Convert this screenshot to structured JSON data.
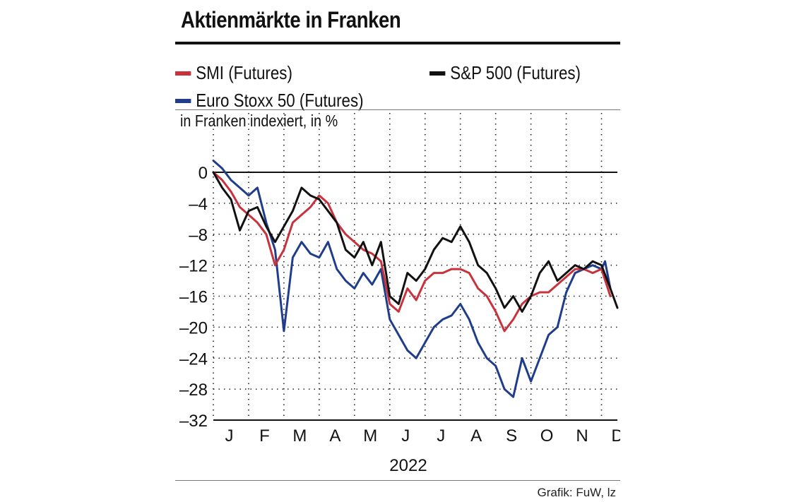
{
  "colors": {
    "smi": "#c8323c",
    "sp500": "#111111",
    "eurostoxx": "#1f3d8a"
  },
  "chart_data": {
    "type": "line",
    "title": "Aktienmärkte in Franken",
    "unit_label": "in Franken indexiert, in %",
    "year_label": "2022",
    "source": "Grafik: FuW, lz",
    "grid": true,
    "ylim": [
      -32,
      0
    ],
    "y_ticks": [
      0,
      -4,
      -8,
      -12,
      -16,
      -20,
      -24,
      -28,
      -32
    ],
    "y_tick_labels": [
      "0",
      "–4",
      "–8",
      "–12",
      "–16",
      "–20",
      "–24",
      "–28",
      "–32"
    ],
    "months": [
      "J",
      "F",
      "M",
      "A",
      "M",
      "J",
      "J",
      "A",
      "S",
      "O",
      "N",
      "D"
    ],
    "x_unit": "month index (0 = start of January 2022)",
    "xlim": [
      0,
      11.45
    ],
    "legend": {
      "placement": "top",
      "entries": [
        "SMI (Futures)",
        "S&P 500 (Futures)",
        "Euro Stoxx 50 (Futures)"
      ]
    },
    "series": [
      {
        "name": "SMI (Futures)",
        "color": "#c8323c",
        "x": [
          0,
          0.25,
          0.5,
          0.75,
          1,
          1.25,
          1.5,
          1.75,
          2,
          2.25,
          2.5,
          2.75,
          3,
          3.25,
          3.5,
          3.75,
          4,
          4.25,
          4.5,
          4.75,
          5,
          5.25,
          5.5,
          5.75,
          6,
          6.25,
          6.5,
          6.75,
          7,
          7.25,
          7.5,
          7.75,
          8,
          8.25,
          8.5,
          8.75,
          9,
          9.25,
          9.5,
          9.75,
          10,
          10.25,
          10.5,
          10.75,
          11,
          11.25
        ],
        "y": [
          0,
          -1,
          -2.5,
          -4.5,
          -5.5,
          -6.5,
          -8,
          -12,
          -10,
          -6.5,
          -5.5,
          -4.5,
          -3,
          -4,
          -6.5,
          -8,
          -9,
          -10,
          -10.5,
          -11.5,
          -17,
          -18,
          -15,
          -16.5,
          -14,
          -13,
          -13,
          -12.5,
          -12.5,
          -13,
          -15,
          -16,
          -18,
          -20.5,
          -19,
          -17,
          -16,
          -15.5,
          -15.5,
          -14.5,
          -13.5,
          -12.5,
          -12.5,
          -13,
          -12.5,
          -16
        ]
      },
      {
        "name": "S&P 500 (Futures)",
        "color": "#111111",
        "x": [
          0,
          0.25,
          0.5,
          0.75,
          1,
          1.25,
          1.5,
          1.75,
          2,
          2.25,
          2.5,
          2.75,
          3,
          3.25,
          3.5,
          3.75,
          4,
          4.25,
          4.5,
          4.75,
          5,
          5.25,
          5.5,
          5.75,
          6,
          6.25,
          6.5,
          6.75,
          7,
          7.25,
          7.5,
          7.75,
          8,
          8.25,
          8.5,
          8.75,
          9,
          9.25,
          9.5,
          9.75,
          10,
          10.25,
          10.5,
          10.75,
          11,
          11.25,
          11.45
        ],
        "y": [
          0,
          -2,
          -3.5,
          -7.5,
          -5,
          -4.5,
          -7,
          -9,
          -7,
          -5,
          -2,
          -3,
          -3.5,
          -5,
          -6.5,
          -10,
          -11,
          -9,
          -12,
          -9,
          -16,
          -17,
          -13,
          -14,
          -12.5,
          -10,
          -8.5,
          -9,
          -7,
          -9,
          -12,
          -13,
          -15,
          -17.5,
          -16,
          -18,
          -16,
          -13,
          -11.5,
          -14,
          -13,
          -12,
          -12.5,
          -11.5,
          -12,
          -15,
          -17.5
        ]
      },
      {
        "name": "Euro Stoxx 50 (Futures)",
        "color": "#1f3d8a",
        "x": [
          0,
          0.25,
          0.5,
          0.75,
          1,
          1.25,
          1.5,
          1.75,
          2,
          2.25,
          2.5,
          2.75,
          3,
          3.25,
          3.5,
          3.75,
          4,
          4.25,
          4.5,
          4.75,
          5,
          5.25,
          5.5,
          5.75,
          6,
          6.25,
          6.5,
          6.75,
          7,
          7.25,
          7.5,
          7.75,
          8,
          8.25,
          8.5,
          8.75,
          9,
          9.25,
          9.5,
          9.75,
          10,
          10.25,
          10.5,
          10.75,
          11,
          11.1,
          11.25
        ],
        "y": [
          1.5,
          0.5,
          -1,
          -2,
          -3,
          -2,
          -6.5,
          -10,
          -20.5,
          -11,
          -9,
          -10.5,
          -11,
          -9,
          -12.5,
          -14,
          -15,
          -13,
          -14.5,
          -12.5,
          -19,
          -21,
          -23,
          -24,
          -22,
          -20,
          -19,
          -18.5,
          -17,
          -19,
          -22,
          -24,
          -25,
          -28,
          -29,
          -24,
          -27,
          -24,
          -21,
          -20,
          -15.5,
          -13,
          -12.5,
          -12,
          -12.5,
          -11.5,
          -15
        ]
      }
    ]
  }
}
